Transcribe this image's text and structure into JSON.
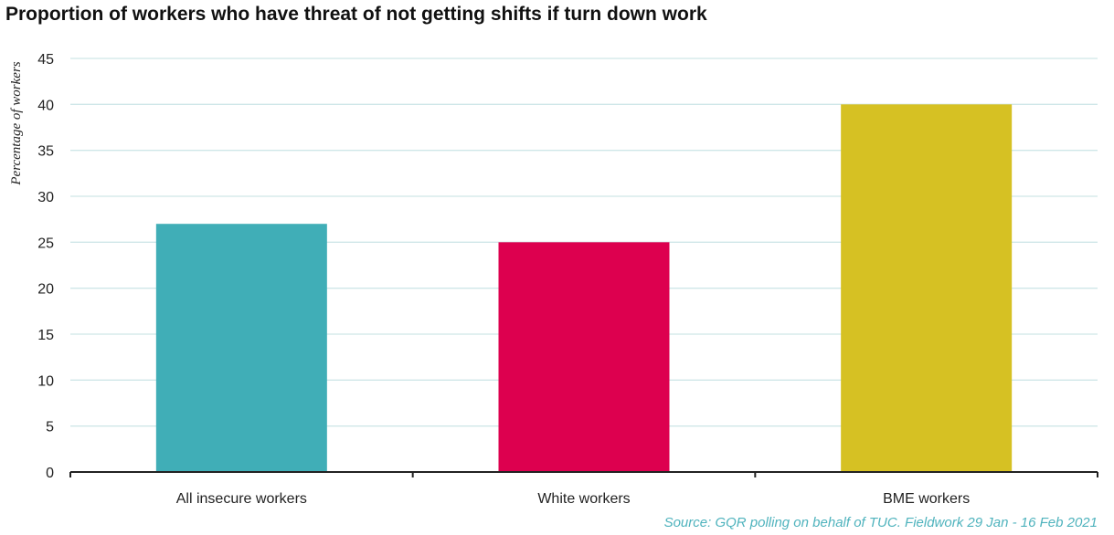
{
  "chart_data": {
    "type": "bar",
    "title": "Proportion of workers who have threat of not getting shifts if turn down work",
    "ylabel": "Percentage of workers",
    "xlabel": "",
    "categories": [
      "All insecure workers",
      "White workers",
      "BME workers"
    ],
    "values": [
      27,
      25,
      40
    ],
    "colors": [
      "#40aeb7",
      "#dd004f",
      "#d6c123"
    ],
    "ylim": [
      0,
      45
    ],
    "yticks": [
      0,
      5,
      10,
      15,
      20,
      25,
      30,
      35,
      40,
      45
    ],
    "grid": true,
    "gridColor": "#cfe6e8",
    "source": "Source: GQR polling on behalf of TUC. Fieldwork 29 Jan - 16 Feb 2021"
  }
}
